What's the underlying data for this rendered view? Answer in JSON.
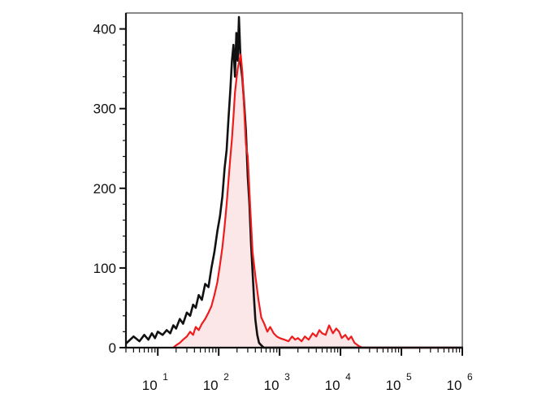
{
  "chart_data": {
    "type": "area",
    "title": "",
    "xlabel": "",
    "ylabel": "",
    "x_scale": "log",
    "xlim": [
      3,
      1000000
    ],
    "ylim": [
      0,
      420
    ],
    "grid": false,
    "x_ticks": [
      {
        "value": 10,
        "base": "10",
        "exp": "1"
      },
      {
        "value": 100,
        "base": "10",
        "exp": "2"
      },
      {
        "value": 1000,
        "base": "10",
        "exp": "3"
      },
      {
        "value": 10000,
        "base": "10",
        "exp": "4"
      },
      {
        "value": 100000,
        "base": "10",
        "exp": "5"
      },
      {
        "value": 1000000,
        "base": "10",
        "exp": "6"
      }
    ],
    "y_ticks": [
      {
        "value": 0,
        "label": "0"
      },
      {
        "value": 100,
        "label": "100"
      },
      {
        "value": 200,
        "label": "200"
      },
      {
        "value": 300,
        "label": "300"
      },
      {
        "value": 400,
        "label": "400"
      }
    ],
    "series": [
      {
        "color": "#111111",
        "fill": "none",
        "x": [
          3,
          4,
          5,
          6,
          7,
          8,
          9,
          10,
          12,
          14,
          16,
          18,
          20,
          23,
          26,
          30,
          34,
          38,
          42,
          47,
          53,
          60,
          68,
          76,
          85,
          95,
          105,
          115,
          125,
          135,
          145,
          155,
          165,
          175,
          185,
          195,
          205,
          215,
          230,
          245,
          260,
          280,
          300,
          320,
          340,
          360,
          380,
          400,
          430,
          460,
          500,
          550,
          600,
          700,
          800,
          1000,
          2000,
          10000,
          100000,
          1000000
        ],
        "y": [
          5,
          14,
          8,
          16,
          10,
          18,
          12,
          20,
          16,
          22,
          18,
          28,
          24,
          36,
          30,
          44,
          40,
          54,
          50,
          66,
          60,
          80,
          76,
          100,
          120,
          146,
          165,
          190,
          225,
          248,
          288,
          322,
          360,
          380,
          340,
          395,
          360,
          415,
          355,
          338,
          310,
          272,
          215,
          180,
          130,
          95,
          62,
          35,
          16,
          6,
          3,
          0,
          0,
          0,
          0,
          0,
          0,
          0,
          0,
          0
        ]
      },
      {
        "color": "#ee1c1c",
        "fill": "#fbe6e8",
        "x": [
          18,
          20,
          23,
          26,
          30,
          34,
          38,
          42,
          47,
          53,
          60,
          68,
          76,
          85,
          95,
          105,
          115,
          125,
          135,
          145,
          155,
          165,
          175,
          185,
          195,
          205,
          215,
          230,
          245,
          260,
          280,
          300,
          330,
          360,
          400,
          450,
          500,
          560,
          630,
          700,
          800,
          900,
          1000,
          1200,
          1400,
          1600,
          1800,
          2000,
          2300,
          2600,
          3000,
          3500,
          4000,
          4500,
          5000,
          5700,
          6500,
          7500,
          8500,
          9500,
          10500,
          12000,
          13500,
          15000,
          17000,
          20000,
          23000,
          26000,
          30000,
          35000,
          100000,
          1000000
        ],
        "y": [
          0,
          3,
          6,
          10,
          14,
          20,
          16,
          26,
          22,
          30,
          36,
          44,
          52,
          66,
          82,
          104,
          126,
          152,
          180,
          210,
          238,
          262,
          290,
          320,
          336,
          350,
          358,
          368,
          345,
          305,
          255,
          240,
          175,
          120,
          90,
          60,
          38,
          30,
          20,
          26,
          18,
          14,
          12,
          10,
          8,
          14,
          10,
          12,
          8,
          14,
          10,
          18,
          14,
          22,
          18,
          16,
          28,
          18,
          24,
          20,
          12,
          16,
          10,
          14,
          6,
          2,
          0,
          0,
          0,
          0,
          0,
          0
        ]
      }
    ]
  }
}
